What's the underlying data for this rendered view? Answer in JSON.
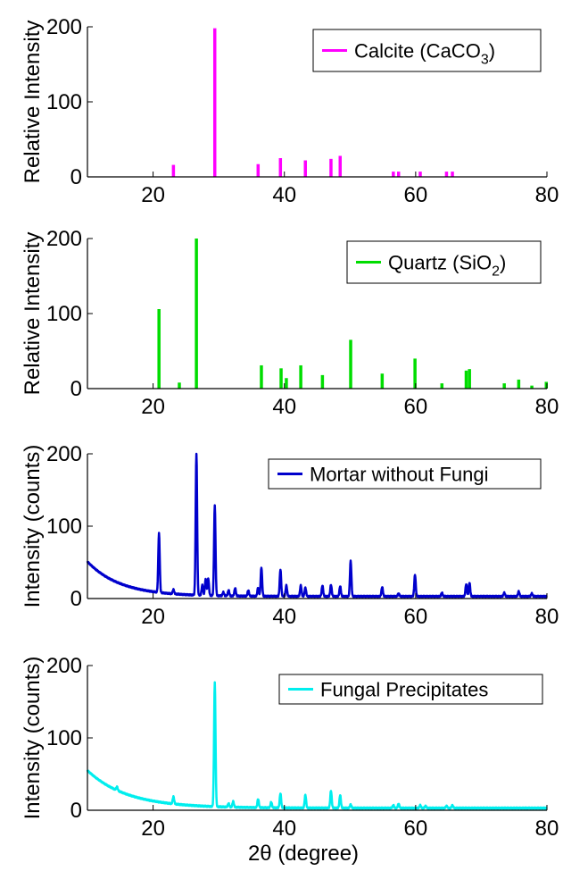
{
  "figure": {
    "xlabel": "2θ (degree)"
  },
  "chart_data": [
    {
      "type": "bar",
      "ylabel": "Relative Intensity",
      "xlim": [
        10,
        80
      ],
      "ylim": [
        0,
        200
      ],
      "xticks": [
        20,
        40,
        60,
        80
      ],
      "yticks": [
        0,
        100,
        200
      ],
      "color": "#ff00ff",
      "legend": {
        "text": "Calcite (CaCO",
        "sub": "3",
        "after": ")",
        "placement": "top-right"
      },
      "peaks": [
        {
          "x": 23.1,
          "y": 16
        },
        {
          "x": 29.4,
          "y": 198
        },
        {
          "x": 36.0,
          "y": 17
        },
        {
          "x": 39.4,
          "y": 25
        },
        {
          "x": 43.2,
          "y": 22
        },
        {
          "x": 47.1,
          "y": 24
        },
        {
          "x": 48.5,
          "y": 28
        },
        {
          "x": 56.6,
          "y": 7
        },
        {
          "x": 57.4,
          "y": 7
        },
        {
          "x": 60.7,
          "y": 7
        },
        {
          "x": 64.7,
          "y": 7
        },
        {
          "x": 65.6,
          "y": 7
        }
      ]
    },
    {
      "type": "bar",
      "ylabel": "Relative Intensity",
      "xlim": [
        10,
        80
      ],
      "ylim": [
        0,
        200
      ],
      "xticks": [
        20,
        40,
        60,
        80
      ],
      "yticks": [
        0,
        100,
        200
      ],
      "color": "#00dd00",
      "legend": {
        "text": "Quartz (SiO",
        "sub": "2",
        "after": ")",
        "placement": "top-right"
      },
      "peaks": [
        {
          "x": 20.9,
          "y": 106
        },
        {
          "x": 24.0,
          "y": 8
        },
        {
          "x": 26.6,
          "y": 200
        },
        {
          "x": 36.5,
          "y": 31
        },
        {
          "x": 39.5,
          "y": 27
        },
        {
          "x": 40.3,
          "y": 14
        },
        {
          "x": 42.5,
          "y": 31
        },
        {
          "x": 45.8,
          "y": 18
        },
        {
          "x": 50.1,
          "y": 65
        },
        {
          "x": 54.9,
          "y": 20
        },
        {
          "x": 59.9,
          "y": 40
        },
        {
          "x": 64.0,
          "y": 7
        },
        {
          "x": 67.7,
          "y": 24
        },
        {
          "x": 68.2,
          "y": 26
        },
        {
          "x": 73.5,
          "y": 7
        },
        {
          "x": 75.7,
          "y": 12
        },
        {
          "x": 77.7,
          "y": 4
        },
        {
          "x": 79.9,
          "y": 9
        }
      ]
    },
    {
      "type": "line",
      "ylabel": "Intensity (counts)",
      "xlim": [
        10,
        80
      ],
      "ylim": [
        0,
        200
      ],
      "xticks": [
        20,
        40,
        60,
        80
      ],
      "yticks": [
        0,
        100,
        200
      ],
      "color": "#0000cc",
      "legend": {
        "text": "Mortar without Fungi",
        "sub": "",
        "after": "",
        "placement": "top-right"
      },
      "baseline": {
        "start": 51,
        "decay": 5.0,
        "floor": 3
      },
      "peaks": [
        {
          "x": 20.9,
          "y": 82
        },
        {
          "x": 23.1,
          "y": 6
        },
        {
          "x": 26.6,
          "y": 198
        },
        {
          "x": 27.5,
          "y": 14
        },
        {
          "x": 28.0,
          "y": 22
        },
        {
          "x": 28.4,
          "y": 24
        },
        {
          "x": 29.4,
          "y": 125
        },
        {
          "x": 30.7,
          "y": 5
        },
        {
          "x": 31.5,
          "y": 8
        },
        {
          "x": 32.5,
          "y": 11
        },
        {
          "x": 34.5,
          "y": 8
        },
        {
          "x": 36.0,
          "y": 12
        },
        {
          "x": 36.5,
          "y": 40
        },
        {
          "x": 39.4,
          "y": 37
        },
        {
          "x": 40.3,
          "y": 15
        },
        {
          "x": 42.5,
          "y": 15
        },
        {
          "x": 43.2,
          "y": 12
        },
        {
          "x": 45.8,
          "y": 15
        },
        {
          "x": 47.1,
          "y": 16
        },
        {
          "x": 48.5,
          "y": 14
        },
        {
          "x": 50.1,
          "y": 49
        },
        {
          "x": 54.9,
          "y": 13
        },
        {
          "x": 57.4,
          "y": 4
        },
        {
          "x": 59.9,
          "y": 30
        },
        {
          "x": 64.0,
          "y": 5
        },
        {
          "x": 67.7,
          "y": 17
        },
        {
          "x": 68.2,
          "y": 19
        },
        {
          "x": 73.5,
          "y": 5
        },
        {
          "x": 75.7,
          "y": 7
        },
        {
          "x": 77.7,
          "y": 4
        }
      ]
    },
    {
      "type": "line",
      "ylabel": "Intensity (counts)",
      "xlim": [
        10,
        80
      ],
      "ylim": [
        0,
        200
      ],
      "xticks": [
        20,
        40,
        60,
        80
      ],
      "yticks": [
        0,
        100,
        200
      ],
      "color": "#00eeee",
      "legend": {
        "text": "Fungal Precipitates",
        "sub": "",
        "after": "",
        "placement": "top-right"
      },
      "baseline": {
        "start": 55,
        "decay": 6.0,
        "floor": 3
      },
      "peaks": [
        {
          "x": 14.5,
          "y": 5
        },
        {
          "x": 23.1,
          "y": 10
        },
        {
          "x": 29.4,
          "y": 172
        },
        {
          "x": 31.5,
          "y": 5
        },
        {
          "x": 32.2,
          "y": 8
        },
        {
          "x": 36.0,
          "y": 12
        },
        {
          "x": 38.0,
          "y": 8
        },
        {
          "x": 39.4,
          "y": 20
        },
        {
          "x": 43.2,
          "y": 18
        },
        {
          "x": 47.1,
          "y": 24
        },
        {
          "x": 48.5,
          "y": 18
        },
        {
          "x": 50.1,
          "y": 5
        },
        {
          "x": 56.6,
          "y": 4
        },
        {
          "x": 57.4,
          "y": 6
        },
        {
          "x": 60.7,
          "y": 4
        },
        {
          "x": 61.5,
          "y": 3
        },
        {
          "x": 64.7,
          "y": 3
        },
        {
          "x": 65.6,
          "y": 4
        }
      ]
    }
  ]
}
